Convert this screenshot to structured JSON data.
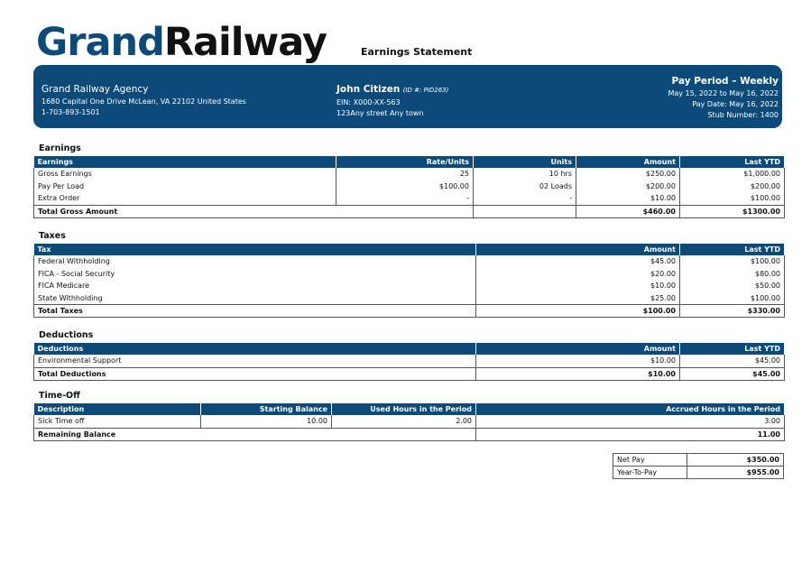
{
  "logo": {
    "part1": "Grand",
    "part2": "Railway"
  },
  "document_title": "Earnings Statement",
  "company": {
    "name": "Grand Railway Agency",
    "address": "1680 Capital One Drive McLean, VA 22102 United States",
    "phone": "1-703-893-1501"
  },
  "employee": {
    "name": "John Citizen",
    "id_label": "(ID #:  PID263)",
    "ein": "EIN: X000-XX-563",
    "address": "123Any street Any town"
  },
  "pay_period": {
    "title": "Pay Period – Weekly",
    "range": "May 15, 2022 to May 16, 2022",
    "pay_date": "Pay Date: May 16, 2022",
    "stub": "Stub Number: 1400"
  },
  "colors": {
    "brand_blue": "#0b4a79"
  },
  "earnings": {
    "title": "Earnings",
    "headers": [
      "Earnings",
      "Rate/Units",
      "Units",
      "Amount",
      "Last YTD"
    ],
    "rows": [
      [
        "Gross Earnings",
        "25",
        "10 hrs",
        "$250.00",
        "$1,000.00"
      ],
      [
        "Pay Per Load",
        "$100.00",
        "02 Loads",
        "$200.00",
        "$200.00"
      ],
      [
        "Extra Order",
        "-",
        "-",
        "$10.00",
        "$100.00"
      ]
    ],
    "total": [
      "Total Gross Amount",
      "",
      "$460.00",
      "$1300.00"
    ]
  },
  "taxes": {
    "title": "Taxes",
    "headers": [
      "Tax",
      "Amount",
      "Last YTD"
    ],
    "rows": [
      [
        "Federal Withholding",
        "$45.00",
        "$100.00"
      ],
      [
        "FICA - Social Security",
        "$20.00",
        "$80.00"
      ],
      [
        "FICA Medicare",
        "$10.00",
        "$50.00"
      ],
      [
        "State Withholding",
        "$25.00",
        "$100.00"
      ]
    ],
    "total": [
      "Total Taxes",
      "$100.00",
      "$330.00"
    ]
  },
  "deductions": {
    "title": "Deductions",
    "headers": [
      "Deductions",
      "Amount",
      "Last YTD"
    ],
    "rows": [
      [
        "Environmental Support",
        "$10.00",
        "$45.00"
      ]
    ],
    "total": [
      "Total Deductions",
      "$10.00",
      "$45.00"
    ]
  },
  "time_off": {
    "title": "Time-Off",
    "headers": [
      "Description",
      "Starting Balance",
      "Used Hours in the Period",
      "Accrued Hours in the Period"
    ],
    "rows": [
      [
        "Sick Time off",
        "10.00",
        "2.00",
        "3.00"
      ]
    ],
    "total": [
      "Remaining Balance",
      "11.00"
    ]
  },
  "summary": [
    [
      "Net Pay",
      "$350.00"
    ],
    [
      "Year-To-Pay",
      "$955.00"
    ]
  ]
}
